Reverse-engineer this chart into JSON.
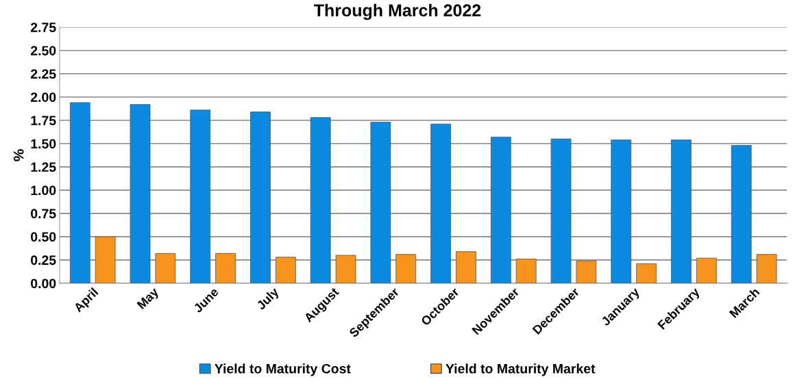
{
  "chart_data": {
    "type": "bar",
    "title": "Through March 2022",
    "ylabel": "%",
    "categories": [
      "April",
      "May",
      "June",
      "July",
      "August",
      "September",
      "October",
      "November",
      "December",
      "January",
      "February",
      "March"
    ],
    "series": [
      {
        "name": "Yield to Maturity Cost",
        "color": "#0a8ae0",
        "values": [
          1.94,
          1.92,
          1.86,
          1.84,
          1.78,
          1.73,
          1.71,
          1.57,
          1.55,
          1.54,
          1.54,
          1.48
        ]
      },
      {
        "name": "Yield to Maturity Market",
        "color": "#f7941d",
        "values": [
          0.5,
          0.32,
          0.32,
          0.28,
          0.3,
          0.31,
          0.34,
          0.26,
          0.24,
          0.21,
          0.27,
          0.31
        ]
      }
    ],
    "ylim": [
      0,
      2.75
    ],
    "yticks": [
      {
        "value": 0,
        "label": "0.00"
      },
      {
        "value": 0.25,
        "label": "0.25"
      },
      {
        "value": 0.5,
        "label": "0.50"
      },
      {
        "value": 0.75,
        "label": "0.75"
      },
      {
        "value": 1,
        "label": "1.00"
      },
      {
        "value": 1.25,
        "label": "1.25"
      },
      {
        "value": 1.5,
        "label": "1.50"
      },
      {
        "value": 1.75,
        "label": "1.75"
      },
      {
        "value": 2,
        "label": "2.00"
      },
      {
        "value": 2.25,
        "label": "2.25"
      },
      {
        "value": 2.5,
        "label": "2.50"
      },
      {
        "value": 2.75,
        "label": "2.75"
      }
    ],
    "grid": "y",
    "legend": "bottom"
  }
}
